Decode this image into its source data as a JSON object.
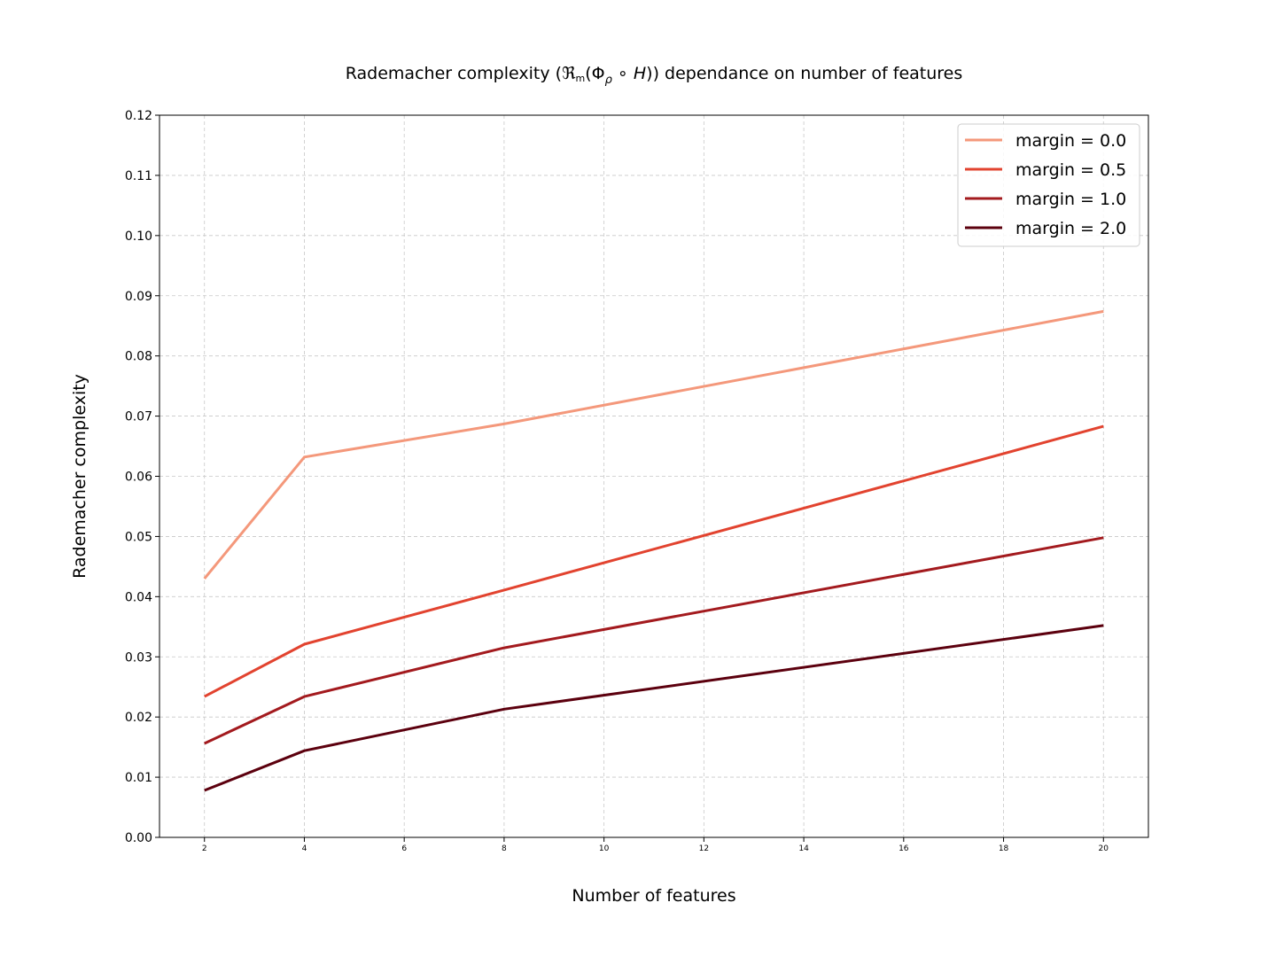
{
  "chart_data": {
    "type": "line",
    "title": "Rademacher complexity (ℜₘ(Φ_ρ ∘ H̃)) dependance on number of features",
    "title_parts": {
      "before": "Rademacher complexity (",
      "calR": "ℜ",
      "m": "m",
      "open": "(Φ",
      "rho": "ρ",
      "circ": " ∘ ",
      "H": "H",
      "tilde": "~",
      "after": ")) dependance on number of features"
    },
    "xlabel": "Number of features",
    "ylabel": "Rademacher complexity",
    "xlim": [
      1.1,
      20.9
    ],
    "ylim": [
      0.0,
      0.12
    ],
    "xticks": [
      2,
      4,
      6,
      8,
      10,
      12,
      14,
      16,
      18,
      20
    ],
    "yticks": [
      "0.00",
      "0.01",
      "0.02",
      "0.03",
      "0.04",
      "0.05",
      "0.06",
      "0.07",
      "0.08",
      "0.09",
      "0.10",
      "0.11",
      "0.12"
    ],
    "grid": true,
    "legend_position": "top-right",
    "x": [
      2,
      4,
      8,
      20
    ],
    "series": [
      {
        "name": "margin = 0.0",
        "color": "#f4987b",
        "values": [
          0.043,
          0.0632,
          0.0687,
          0.0874
        ]
      },
      {
        "name": "margin = 0.5",
        "color": "#e2432f",
        "values": [
          0.0234,
          0.0321,
          0.0411,
          0.0683
        ]
      },
      {
        "name": "margin = 1.0",
        "color": "#a31a1e",
        "values": [
          0.0156,
          0.0234,
          0.0315,
          0.0498
        ]
      },
      {
        "name": "margin = 2.0",
        "color": "#5c000e",
        "values": [
          0.0078,
          0.0144,
          0.0213,
          0.0352
        ]
      }
    ]
  }
}
